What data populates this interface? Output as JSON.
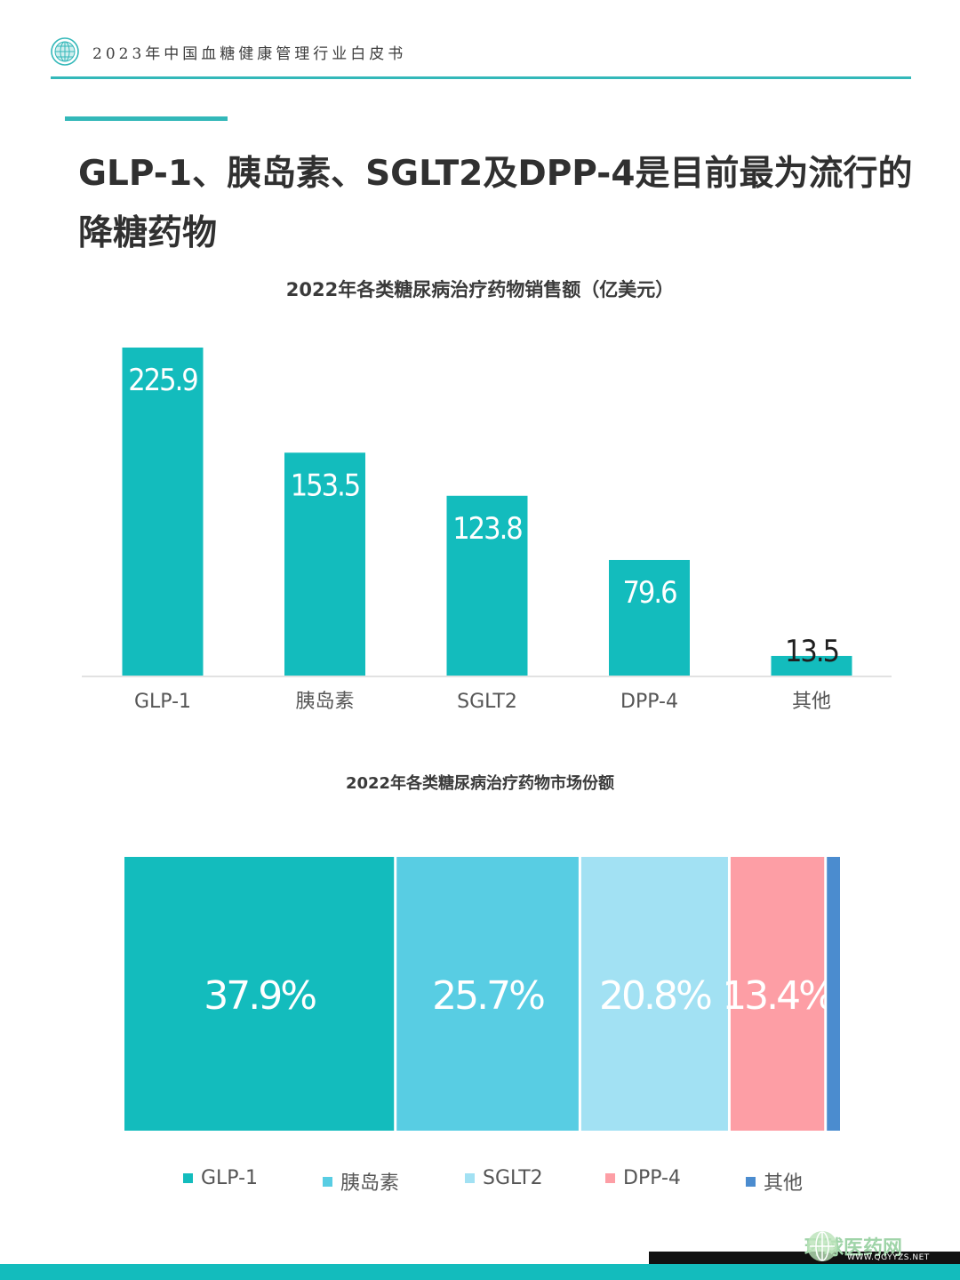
{
  "header": {
    "title": "2023年中国血糖健康管理行业白皮书"
  },
  "headline": "GLP-1、胰岛素、SGLT2及DPP-4是目前最为流行的降糖药物",
  "colors": {
    "teal": "#13bcbd",
    "light_blue": "#58cde3",
    "pale_blue": "#a2e1f3",
    "pink": "#fd9ea5",
    "blue": "#4b8ccf"
  },
  "chart_data": [
    {
      "type": "bar",
      "title": "2022年各类糖尿病治疗药物销售额（亿美元）",
      "categories": [
        "GLP-1",
        "胰岛素",
        "SGLT2",
        "DPP-4",
        "其他"
      ],
      "values": [
        225.9,
        153.5,
        123.8,
        79.6,
        13.5
      ],
      "value_labels": [
        "225.9",
        "153.5",
        "123.8",
        "79.6",
        "13.5"
      ],
      "color": "#13bcbd",
      "ylim": [
        0,
        225.9
      ],
      "grid": false
    },
    {
      "type": "bar",
      "stacked": "100%",
      "title": "2022年各类糖尿病治疗药物市场份额",
      "categories": [
        "GLP-1",
        "胰岛素",
        "SGLT2",
        "DPP-4",
        "其他"
      ],
      "values": [
        37.9,
        25.7,
        20.8,
        13.4,
        2.2
      ],
      "value_labels": [
        "37.9%",
        "25.7%",
        "20.8%",
        "13.4%",
        ""
      ],
      "colors": [
        "#13bcbd",
        "#58cde3",
        "#a2e1f3",
        "#fd9ea5",
        "#4b8ccf"
      ],
      "legend": "bottom"
    }
  ],
  "watermark": {
    "text": "环球医药网",
    "url": "WWW.QGYYZS.NET"
  }
}
